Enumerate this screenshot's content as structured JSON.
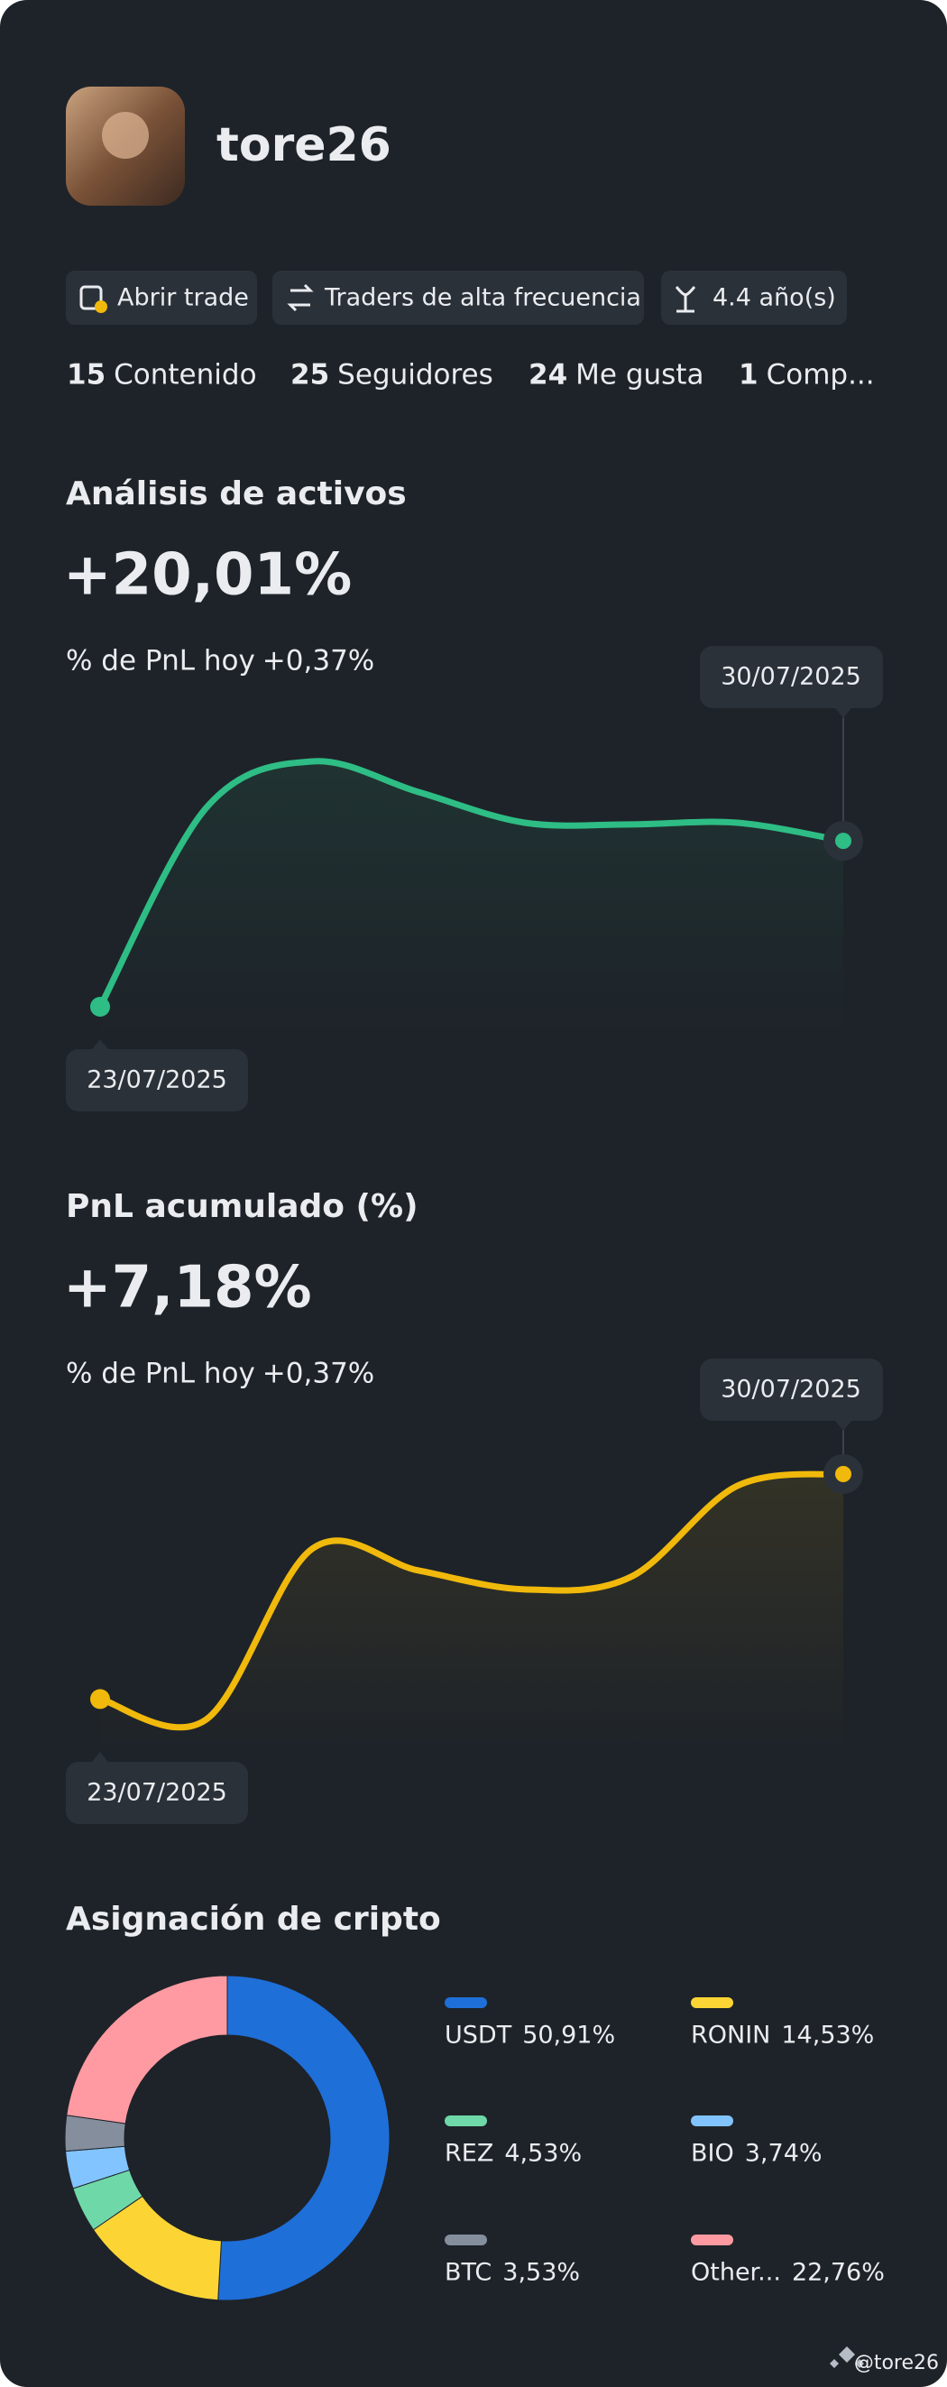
{
  "profile": {
    "username": "tore26",
    "tags": [
      "Abrir trade",
      "Traders de alta frecuencia",
      "4.4 año(s)"
    ],
    "stats": [
      {
        "value": 15,
        "label": "Contenido"
      },
      {
        "value": 25,
        "label": "Seguidores"
      },
      {
        "value": 24,
        "label": "Me gusta"
      },
      {
        "value": 1,
        "label": "Comp..."
      }
    ]
  },
  "chart_data": [
    {
      "type": "line",
      "title": "Análisis de activos",
      "headline": "+20,01%",
      "subtitle_label": "% de PnL hoy",
      "subtitle_value": "+0,37%",
      "x": [
        "23/07/2025",
        null,
        null,
        null,
        null,
        null,
        null,
        "30/07/2025"
      ],
      "series": [
        {
          "color": "#2ebd85",
          "values": [
            0,
            24.0,
            29.6,
            25.9,
            22.2,
            22.0,
            22.2,
            20.01
          ]
        }
      ]
    },
    {
      "type": "line",
      "title": "PnL acumulado (%)",
      "headline": "+7,18%",
      "subtitle_label": "% de PnL hoy",
      "subtitle_value": "+0,37%",
      "x": [
        "23/07/2025",
        null,
        null,
        null,
        null,
        null,
        null,
        "30/07/2025"
      ],
      "series": [
        {
          "color": "#f0b90b",
          "values": [
            0,
            -0.65,
            4.8,
            4.1,
            3.5,
            3.9,
            6.8,
            7.18
          ]
        }
      ]
    },
    {
      "type": "donut",
      "title": "Asignación de cripto",
      "categories": [
        "USDT",
        "RONIN",
        "REZ",
        "BIO",
        "BTC",
        "Other..."
      ],
      "values": [
        50.91,
        14.53,
        4.53,
        3.74,
        3.53,
        22.76
      ],
      "value_labels": [
        "50,91%",
        "14,53%",
        "4,53%",
        "3,74%",
        "3,53%",
        "22,76%"
      ],
      "colors": [
        "#1f6fd8",
        "#fcd535",
        "#6fd8a8",
        "#82c4ff",
        "#848e9c",
        "#ff9aa2"
      ]
    }
  ],
  "watermark": "@tore26"
}
